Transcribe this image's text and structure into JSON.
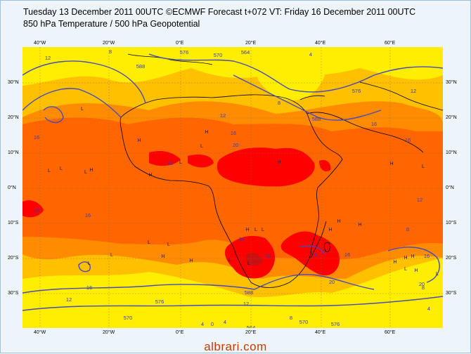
{
  "header": {
    "title_line1": "Tuesday 13 December 2011 00UTC ©ECMWF Forecast t+072 VT: Friday 16 December 2011 00UTC",
    "title_line2": "850 hPa Temperature / 500 hPa Geopotential"
  },
  "axes": {
    "top_lon": [
      "40°W",
      "20°W",
      "0°E",
      "20°E",
      "40°E",
      "60°E"
    ],
    "bottom_lon": [
      "40°W",
      "20°W",
      "0°E",
      "20°E",
      "40°E",
      "60°E"
    ],
    "left_lat": [
      "30°N",
      "20°N",
      "10°N",
      "0°N",
      "10°S",
      "20°S",
      "30°S"
    ],
    "right_lat": [
      "30°N",
      "20°N",
      "10°N",
      "0°N",
      "10°S",
      "20°S",
      "30°S"
    ]
  },
  "contour_labels": [
    "12",
    "576",
    "588",
    "570",
    "564",
    "4",
    "8",
    "12",
    "8",
    "16",
    "576",
    "16",
    "12",
    "588",
    "16",
    "20",
    "16",
    "20",
    "12",
    "16",
    "20",
    "20",
    "16",
    "16",
    "20",
    "16",
    "12",
    "576",
    "12",
    "570",
    "564",
    "8",
    "4",
    "8",
    "570",
    "576",
    "588",
    "4",
    "12",
    "16",
    "20",
    "0",
    "4",
    "8"
  ],
  "pressure_marks": [
    "L",
    "H",
    "L",
    "H",
    "L",
    "L",
    "H",
    "H",
    "H",
    "L",
    "L",
    "H",
    "L",
    "H",
    "L",
    "L",
    "H",
    "L",
    "H",
    "L",
    "L",
    "H",
    "L",
    "L",
    "H",
    "H",
    "H",
    "H",
    "L",
    "L",
    "H",
    "H",
    "L"
  ],
  "colors": {
    "yellow": "#ffee00",
    "light_orange": "#ffc000",
    "orange": "#ff8c00",
    "dark_orange": "#ff6600",
    "red": "#ff0000",
    "dark_red": "#cc1010",
    "contour": "#4a4ab8",
    "coast": "#000000"
  },
  "watermark": "albrari.com"
}
